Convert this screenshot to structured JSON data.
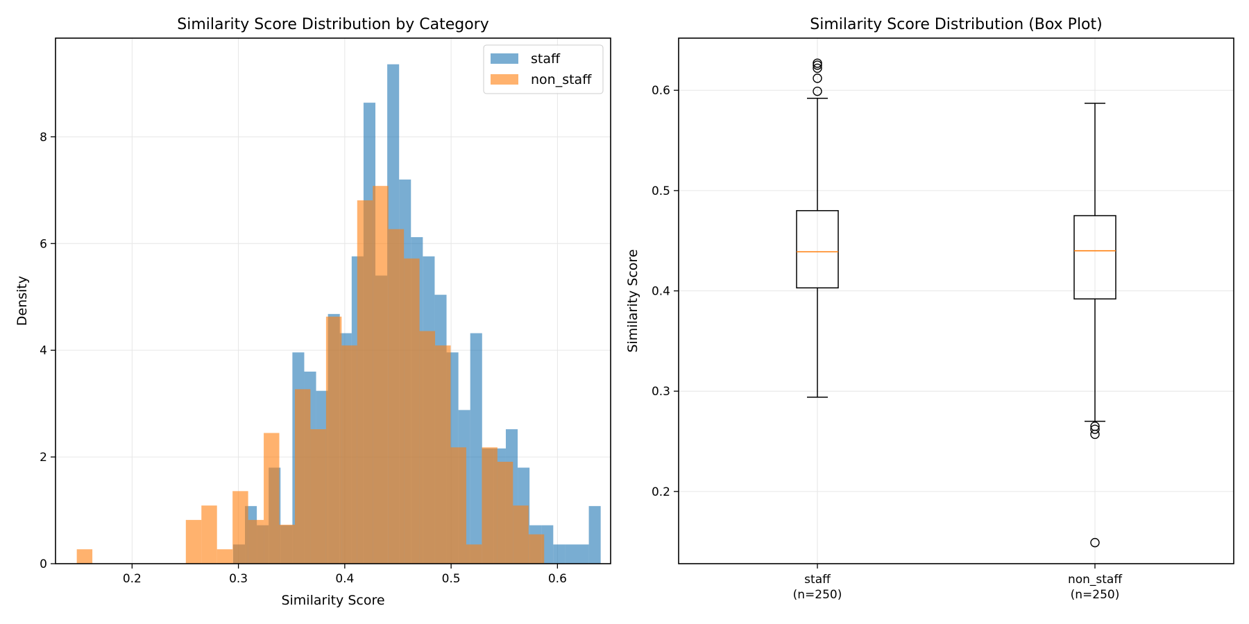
{
  "chart_data": [
    {
      "type": "histogram",
      "title": "Similarity Score Distribution by Category",
      "xlabel": "Similarity Score",
      "ylabel": "Density",
      "xlim": [
        0.128,
        0.65
      ],
      "ylim": [
        0,
        9.85
      ],
      "xticks": [
        "0.2",
        "0.3",
        "0.4",
        "0.5",
        "0.6"
      ],
      "xtick_values": [
        0.2,
        0.3,
        0.4,
        0.5,
        0.6
      ],
      "yticks": [
        "0",
        "2",
        "4",
        "6",
        "8"
      ],
      "ytick_values": [
        0,
        2,
        4,
        6,
        8
      ],
      "grid": true,
      "legend_position": "top-right",
      "series": [
        {
          "name": "staff",
          "color": "#1f77b4",
          "alpha": 0.6,
          "bin_start": 0.295,
          "bin_width": 0.01115,
          "values": [
            0.36,
            1.08,
            0.72,
            1.8,
            0.72,
            3.96,
            3.6,
            3.24,
            4.68,
            4.32,
            5.76,
            8.64,
            5.4,
            9.36,
            7.2,
            6.12,
            5.76,
            5.04,
            3.96,
            2.88,
            4.32,
            2.16,
            2.16,
            2.52,
            1.8,
            0.72,
            0.72,
            0.36,
            0.36,
            0.36,
            1.08
          ]
        },
        {
          "name": "non_staff",
          "color": "#ff7f0e",
          "alpha": 0.6,
          "bin_start": 0.148,
          "bin_width": 0.01465,
          "values": [
            0.27,
            0,
            0,
            0,
            0,
            0,
            0,
            0.82,
            1.09,
            0.27,
            1.36,
            0.82,
            2.45,
            0.73,
            3.27,
            2.52,
            4.63,
            4.09,
            6.81,
            7.08,
            6.27,
            5.72,
            4.36,
            4.09,
            2.18,
            0.36,
            2.18,
            1.91,
            1.09,
            0.55
          ]
        }
      ]
    },
    {
      "type": "box",
      "title": "Similarity Score Distribution (Box Plot)",
      "xlabel": "",
      "ylabel": "Similarity Score",
      "ylim": [
        0.128,
        0.652
      ],
      "yticks": [
        "0.2",
        "0.3",
        "0.4",
        "0.5",
        "0.6"
      ],
      "ytick_values": [
        0.2,
        0.3,
        0.4,
        0.5,
        0.6
      ],
      "grid": true,
      "categories": [
        "staff\n(n=250)",
        "non_staff\n(n=250)"
      ],
      "category_lines": [
        [
          "staff",
          "(n=250)"
        ],
        [
          "non_staff",
          "(n=250)"
        ]
      ],
      "boxes": [
        {
          "whisker_low": 0.294,
          "q1": 0.403,
          "median": 0.439,
          "q3": 0.48,
          "whisker_high": 0.592,
          "outliers": [
            0.599,
            0.612,
            0.622,
            0.625,
            0.627
          ]
        },
        {
          "whisker_low": 0.27,
          "q1": 0.392,
          "median": 0.44,
          "q3": 0.475,
          "whisker_high": 0.587,
          "outliers": [
            0.257,
            0.262,
            0.265,
            0.149
          ]
        }
      ],
      "median_color": "#ff7f0e"
    }
  ]
}
